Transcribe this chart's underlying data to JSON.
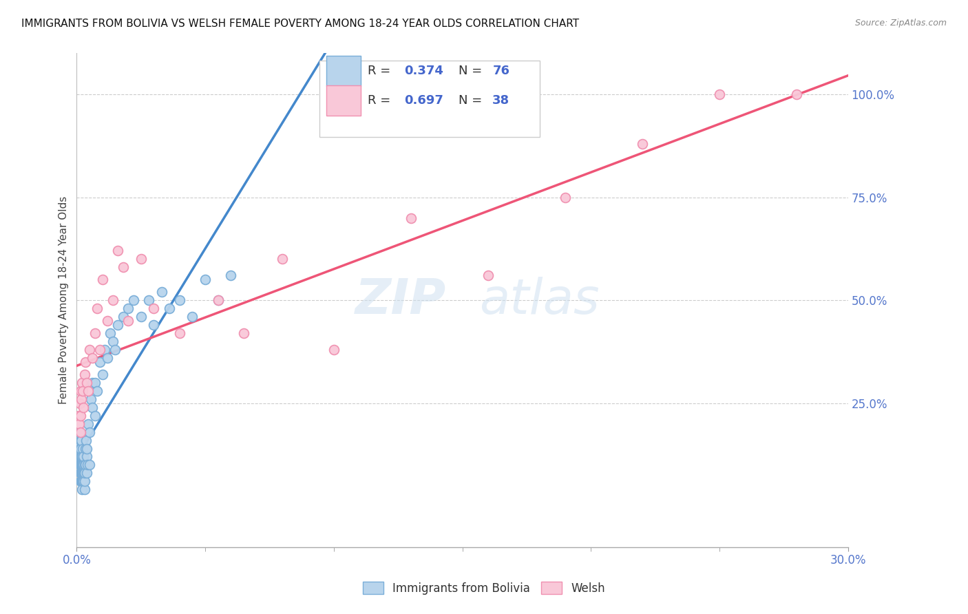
{
  "title": "IMMIGRANTS FROM BOLIVIA VS WELSH FEMALE POVERTY AMONG 18-24 YEAR OLDS CORRELATION CHART",
  "source": "Source: ZipAtlas.com",
  "ylabel": "Female Poverty Among 18-24 Year Olds",
  "xlim": [
    0.0,
    0.3
  ],
  "ylim": [
    -0.1,
    1.1
  ],
  "xtick_vals": [
    0.0,
    0.3
  ],
  "xtick_labels": [
    "0.0%",
    "30.0%"
  ],
  "ytick_vals_right": [
    0.25,
    0.5,
    0.75,
    1.0
  ],
  "ytick_labels_right": [
    "25.0%",
    "50.0%",
    "75.0%",
    "100.0%"
  ],
  "legend_r1": "R = 0.374",
  "legend_n1": "N = 76",
  "legend_r2": "R = 0.697",
  "legend_n2": "N = 38",
  "watermark": "ZIPatlas",
  "series1_color": "#b8d4ec",
  "series1_edge": "#7aaed8",
  "series2_color": "#f9c8d8",
  "series2_edge": "#f090b0",
  "line1_color": "#4488cc",
  "line2_color": "#ee5577",
  "r_text_color": "#4466cc",
  "n_text_color": "#4466cc",
  "bolivia_x": [
    0.0008,
    0.001,
    0.001,
    0.0012,
    0.0012,
    0.0014,
    0.0014,
    0.0015,
    0.0015,
    0.0015,
    0.0016,
    0.0016,
    0.0017,
    0.0017,
    0.0018,
    0.0018,
    0.0018,
    0.0019,
    0.0019,
    0.002,
    0.002,
    0.002,
    0.0021,
    0.0021,
    0.0022,
    0.0022,
    0.0023,
    0.0024,
    0.0024,
    0.0025,
    0.0025,
    0.0026,
    0.0026,
    0.0027,
    0.0028,
    0.003,
    0.003,
    0.003,
    0.0032,
    0.0033,
    0.0035,
    0.0036,
    0.0038,
    0.004,
    0.004,
    0.0042,
    0.0045,
    0.005,
    0.005,
    0.0055,
    0.006,
    0.006,
    0.007,
    0.007,
    0.008,
    0.009,
    0.01,
    0.011,
    0.012,
    0.013,
    0.014,
    0.015,
    0.016,
    0.018,
    0.02,
    0.022,
    0.025,
    0.028,
    0.03,
    0.033,
    0.036,
    0.04,
    0.045,
    0.05,
    0.055,
    0.06
  ],
  "bolivia_y": [
    0.15,
    0.12,
    0.18,
    0.1,
    0.14,
    0.08,
    0.12,
    0.06,
    0.1,
    0.16,
    0.08,
    0.14,
    0.06,
    0.1,
    0.08,
    0.12,
    0.16,
    0.06,
    0.1,
    0.06,
    0.08,
    0.12,
    0.04,
    0.08,
    0.1,
    0.14,
    0.08,
    0.06,
    0.1,
    0.08,
    0.12,
    0.06,
    0.1,
    0.12,
    0.08,
    0.04,
    0.06,
    0.1,
    0.08,
    0.14,
    0.1,
    0.16,
    0.12,
    0.08,
    0.14,
    0.1,
    0.2,
    0.1,
    0.18,
    0.26,
    0.24,
    0.3,
    0.22,
    0.3,
    0.28,
    0.35,
    0.32,
    0.38,
    0.36,
    0.42,
    0.4,
    0.38,
    0.44,
    0.46,
    0.48,
    0.5,
    0.46,
    0.5,
    0.44,
    0.52,
    0.48,
    0.5,
    0.46,
    0.55,
    0.5,
    0.56
  ],
  "welsh_x": [
    0.0008,
    0.001,
    0.0012,
    0.0014,
    0.0015,
    0.0016,
    0.0018,
    0.002,
    0.0022,
    0.0025,
    0.003,
    0.0035,
    0.004,
    0.0045,
    0.005,
    0.006,
    0.007,
    0.008,
    0.009,
    0.01,
    0.012,
    0.014,
    0.016,
    0.018,
    0.02,
    0.025,
    0.03,
    0.04,
    0.055,
    0.065,
    0.08,
    0.1,
    0.13,
    0.16,
    0.19,
    0.22,
    0.25,
    0.28
  ],
  "welsh_y": [
    0.22,
    0.2,
    0.25,
    0.18,
    0.28,
    0.22,
    0.26,
    0.3,
    0.28,
    0.24,
    0.32,
    0.35,
    0.3,
    0.28,
    0.38,
    0.36,
    0.42,
    0.48,
    0.38,
    0.55,
    0.45,
    0.5,
    0.62,
    0.58,
    0.45,
    0.6,
    0.48,
    0.42,
    0.5,
    0.42,
    0.6,
    0.38,
    0.7,
    0.56,
    0.75,
    0.88,
    1.0,
    1.0
  ]
}
